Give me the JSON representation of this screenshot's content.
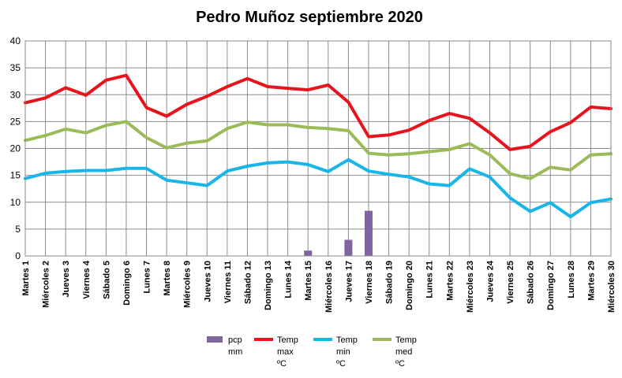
{
  "chart_data": {
    "type": "bar+line",
    "title": "Pedro Muñoz septiembre 2020",
    "categories": [
      "Martes 1",
      "Miércoles 2",
      "Jueves 3",
      "Viernes 4",
      "Sábado 5",
      "Domingo 6",
      "Lunes 7",
      "Martes 8",
      "Miércoles 9",
      "Jueves 10",
      "Viernes 11",
      "Sábado 12",
      "Domingo 13",
      "Lunes 14",
      "Martes 15",
      "Miércoles 16",
      "Jueves 17",
      "Viernes 18",
      "Sábado 19",
      "Domingo 20",
      "Lunes 21",
      "Martes 22",
      "Miércoles 23",
      "Jueves 24",
      "Viernes 25",
      "Sábado 26",
      "Domingo 27",
      "Lunes 28",
      "Martes 29",
      "Miércoles 30"
    ],
    "ylim": [
      0,
      40
    ],
    "yticks": [
      0,
      5,
      10,
      15,
      20,
      25,
      30,
      35,
      40
    ],
    "grid": true,
    "legend_position": "bottom",
    "series": [
      {
        "name": "pcp mm",
        "legend_lines": [
          "pcp",
          "mm"
        ],
        "kind": "bar",
        "color": "#8064a2",
        "values": [
          0,
          0,
          0,
          0,
          0,
          0,
          0,
          0,
          0,
          0,
          0,
          0,
          0,
          0,
          1.0,
          0,
          3.0,
          8.4,
          0,
          0,
          0,
          0,
          0,
          0,
          0,
          0,
          0,
          0,
          0,
          0
        ]
      },
      {
        "name": "Temp max ºC",
        "legend_lines": [
          "Temp",
          "max",
          "ºC"
        ],
        "kind": "line",
        "color": "#e8141d",
        "values": [
          28.5,
          29.4,
          31.3,
          29.9,
          32.7,
          33.6,
          27.6,
          26.0,
          28.2,
          29.7,
          31.5,
          33.0,
          31.5,
          31.2,
          30.9,
          31.8,
          28.6,
          22.2,
          22.5,
          23.4,
          25.2,
          26.5,
          25.6,
          22.9,
          19.8,
          20.4,
          23.1,
          24.8,
          27.7,
          27.4
        ]
      },
      {
        "name": "Temp min ºC",
        "legend_lines": [
          "Temp",
          "min",
          "ºC"
        ],
        "kind": "line",
        "color": "#17b5e8",
        "values": [
          14.4,
          15.4,
          15.7,
          15.9,
          15.9,
          16.3,
          16.3,
          14.1,
          13.6,
          13.1,
          15.8,
          16.7,
          17.3,
          17.5,
          17.0,
          15.7,
          17.9,
          15.8,
          15.2,
          14.7,
          13.4,
          13.1,
          16.2,
          14.7,
          10.8,
          8.3,
          9.9,
          7.3,
          9.9,
          10.6
        ]
      },
      {
        "name": "Temp med ºC",
        "legend_lines": [
          "Temp",
          "med",
          "ºC"
        ],
        "kind": "line",
        "color": "#9bbb59",
        "values": [
          21.5,
          22.4,
          23.6,
          22.9,
          24.3,
          25.0,
          22.0,
          20.1,
          21.0,
          21.4,
          23.7,
          24.9,
          24.4,
          24.4,
          23.9,
          23.7,
          23.3,
          19.1,
          18.8,
          19.0,
          19.4,
          19.8,
          20.9,
          18.8,
          15.3,
          14.4,
          16.5,
          16.0,
          18.8,
          19.0
        ]
      }
    ]
  }
}
